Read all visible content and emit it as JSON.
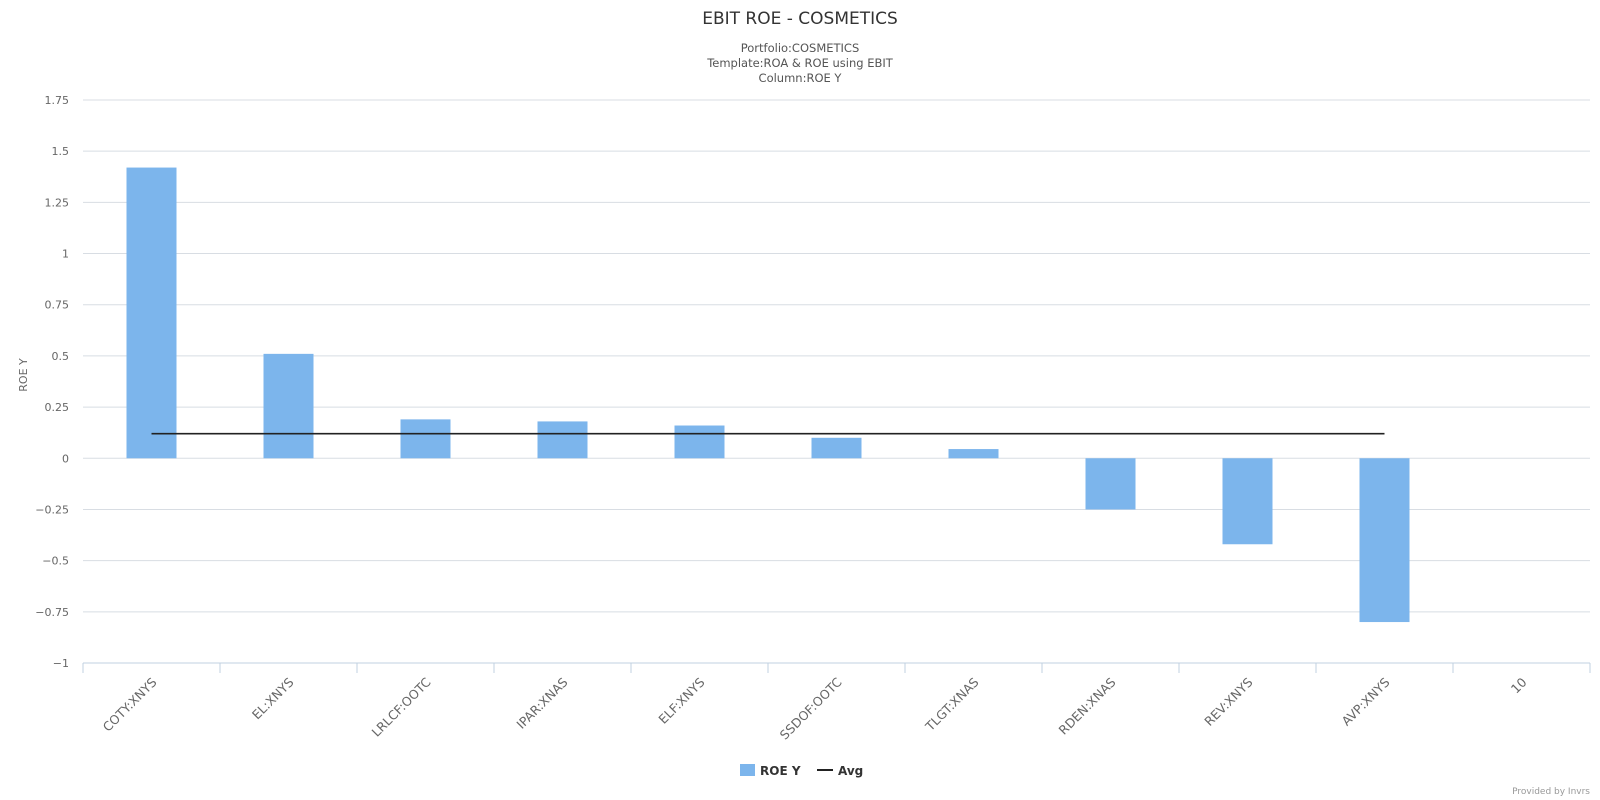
{
  "chart_data": {
    "type": "bar",
    "title": "EBIT ROE - COSMETICS",
    "subtitle": [
      "Portfolio:COSMETICS",
      "Template:ROA & ROE using EBIT",
      "Column:ROE Y"
    ],
    "ylabel": "ROE Y",
    "xlabel": "",
    "ylim": [
      -1,
      1.75
    ],
    "yticks": [
      -1,
      -0.75,
      -0.5,
      -0.25,
      0,
      0.25,
      0.5,
      0.75,
      1,
      1.25,
      1.5,
      1.75
    ],
    "ytick_labels": [
      "−1",
      "−0.75",
      "−0.5",
      "−0.25",
      "0",
      "0.25",
      "0.5",
      "0.75",
      "1",
      "1.25",
      "1.5",
      "1.75"
    ],
    "categories": [
      "COTY:XNYS",
      "EL:XNYS",
      "LRLCF:OOTC",
      "IPAR:XNAS",
      "ELF:XNYS",
      "SSDOF:OOTC",
      "TLGT:XNAS",
      "RDEN:XNAS",
      "REV:XNYS",
      "AVP:XNYS",
      "10"
    ],
    "series": [
      {
        "name": "ROE Y",
        "type": "bar",
        "color": "#7cb5ec",
        "values": [
          1.42,
          0.51,
          0.19,
          0.18,
          0.16,
          0.1,
          0.045,
          -0.25,
          -0.42,
          -0.8,
          null
        ]
      },
      {
        "name": "Avg",
        "type": "line",
        "color": "#222222",
        "values": [
          0.12,
          0.12,
          0.12,
          0.12,
          0.12,
          0.12,
          0.12,
          0.12,
          0.12,
          0.12,
          null
        ]
      }
    ],
    "grid": true,
    "legend": "bottom-center",
    "credit": "Provided by Invrs"
  }
}
